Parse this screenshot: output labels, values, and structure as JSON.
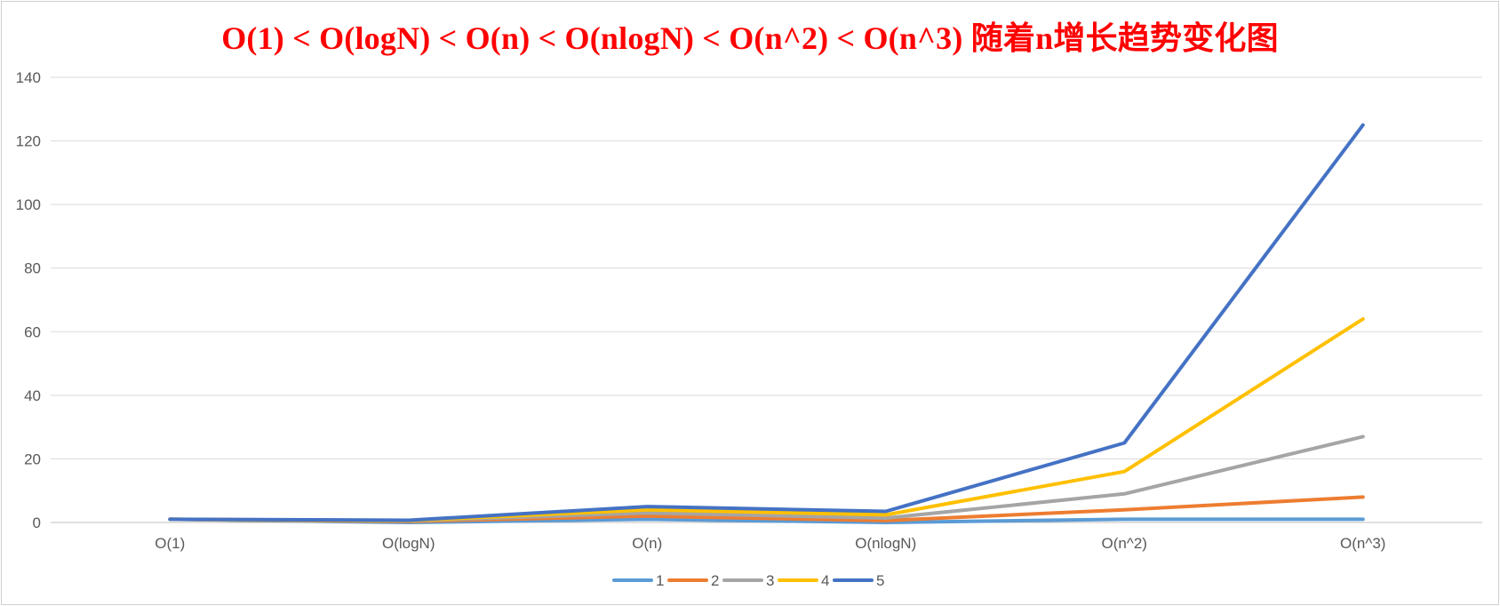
{
  "chart_data": {
    "type": "line",
    "title": "O(1) < O(logN) < O(n) < O(nlogN) < O(n^2) < O(n^3) 随着n增长趋势变化图",
    "categories": [
      "O(1)",
      "O(logN)",
      "O(n)",
      "O(nlogN)",
      "O(n^2)",
      "O(n^3)"
    ],
    "series": [
      {
        "name": "1",
        "color": "#5b9bd5",
        "values": [
          1,
          0,
          1,
          0,
          1,
          1
        ]
      },
      {
        "name": "2",
        "color": "#ed7d31",
        "values": [
          1,
          0.3,
          2,
          0.6,
          4,
          8
        ]
      },
      {
        "name": "3",
        "color": "#a5a5a5",
        "values": [
          1,
          0.5,
          3,
          1.4,
          9,
          27
        ]
      },
      {
        "name": "4",
        "color": "#ffc000",
        "values": [
          1,
          0.6,
          4,
          2.4,
          16,
          64
        ]
      },
      {
        "name": "5",
        "color": "#4472c4",
        "values": [
          1,
          0.7,
          5,
          3.5,
          25,
          125
        ]
      }
    ],
    "ylim": [
      0,
      140
    ],
    "yticks": [
      0,
      20,
      40,
      60,
      80,
      100,
      120,
      140
    ],
    "grid": true,
    "legend": "bottom-center"
  }
}
